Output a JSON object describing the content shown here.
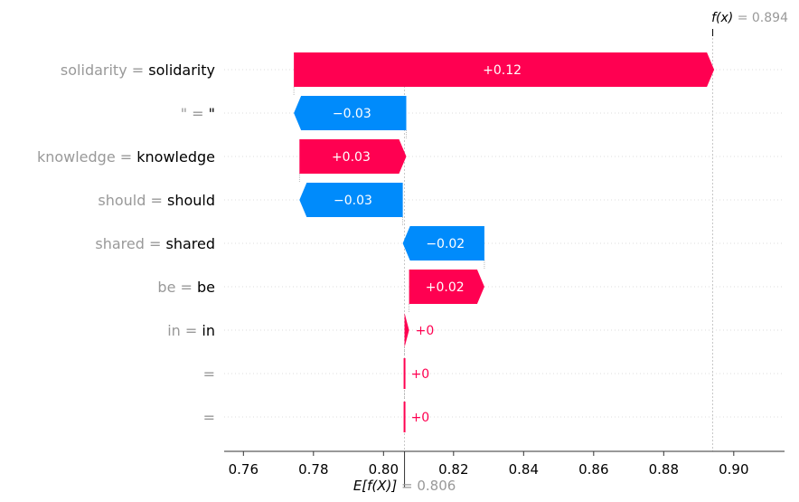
{
  "chart_data": {
    "type": "waterfall",
    "title": "",
    "xlabel": "",
    "xlim": [
      0.7545,
      0.9145
    ],
    "x_ticks": [
      0.76,
      0.78,
      0.8,
      0.82,
      0.84,
      0.86,
      0.88,
      0.9
    ],
    "x_tick_labels": [
      "0.76",
      "0.78",
      "0.80",
      "0.82",
      "0.84",
      "0.86",
      "0.88",
      "0.90"
    ],
    "base_value": 0.806,
    "base_value_label": "E[f(X)]",
    "base_value_text": "= 0.806",
    "output_value": 0.894,
    "output_value_label": "f(x)",
    "output_value_text": "= 0.894",
    "features": [
      {
        "name": "solidarity",
        "value": "solidarity",
        "start": 0.7744,
        "end": 0.8944,
        "contribution_label": "+0.12",
        "sign": "positive"
      },
      {
        "name": "\"",
        "value": "\"",
        "start": 0.8065,
        "end": 0.7744,
        "contribution_label": "−0.03",
        "sign": "negative"
      },
      {
        "name": "knowledge ",
        "value": "knowledge",
        "start": 0.776,
        "end": 0.8065,
        "contribution_label": "+0.03",
        "sign": "positive"
      },
      {
        "name": "should ",
        "value": "should",
        "start": 0.8055,
        "end": 0.776,
        "contribution_label": "−0.03",
        "sign": "negative"
      },
      {
        "name": "shared ",
        "value": "shared",
        "start": 0.8288,
        "end": 0.8055,
        "contribution_label": "−0.02",
        "sign": "negative"
      },
      {
        "name": "be ",
        "value": "be",
        "start": 0.8073,
        "end": 0.8288,
        "contribution_label": "+0.02",
        "sign": "positive"
      },
      {
        "name": "in ",
        "value": "in",
        "start": 0.806,
        "end": 0.8073,
        "contribution_label": "+0",
        "sign": "positive"
      },
      {
        "name": "",
        "value": "",
        "start": 0.806,
        "end": 0.806,
        "contribution_label": "+0",
        "sign": "positive"
      },
      {
        "name": "",
        "value": "",
        "start": 0.806,
        "end": 0.806,
        "contribution_label": "+0",
        "sign": "positive"
      }
    ],
    "colors": {
      "positive": "#ff0051",
      "negative": "#008bfb",
      "feature_name": "#999999",
      "feature_value": "#000000",
      "axis": "#333333",
      "grid": "#dddddd"
    },
    "grid": true
  }
}
